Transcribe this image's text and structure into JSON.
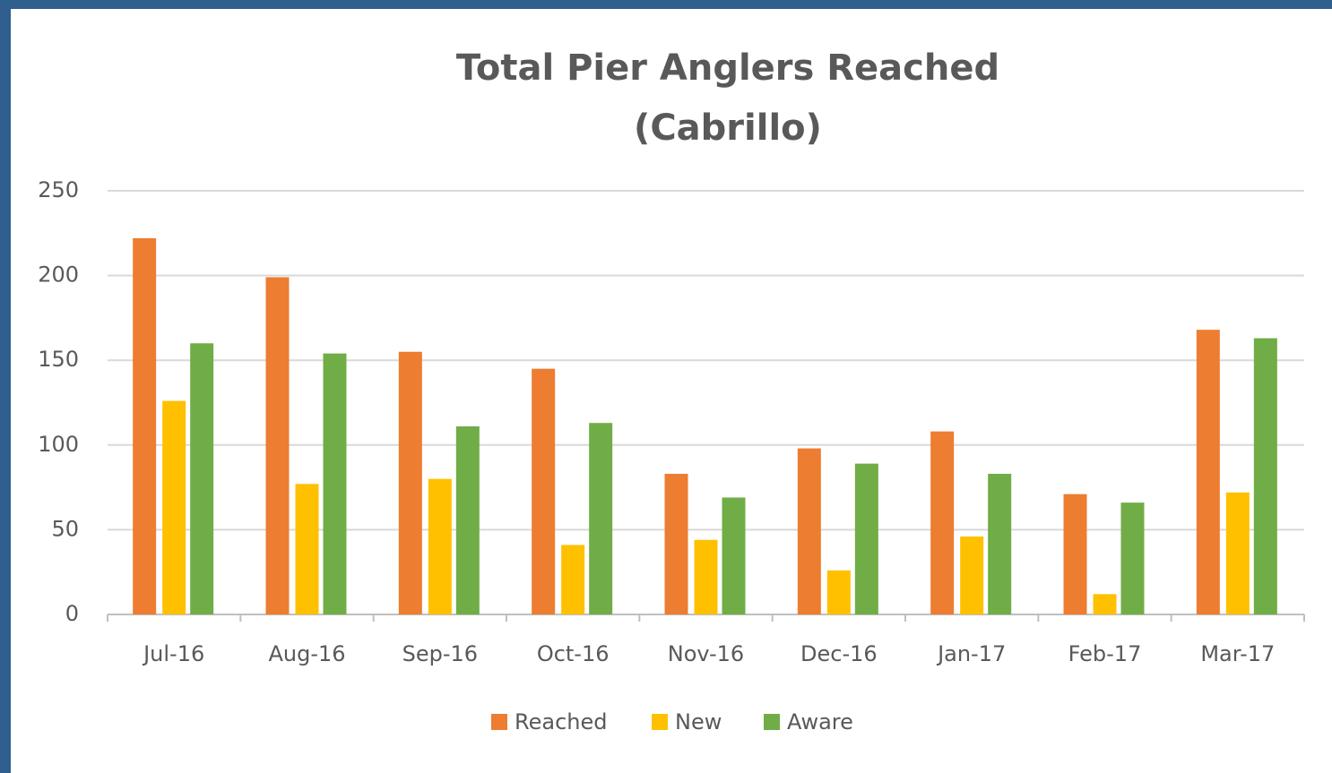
{
  "chart_data": {
    "type": "bar",
    "title": [
      "Total Pier Anglers Reached",
      "(Cabrillo)"
    ],
    "categories": [
      "Jul-16",
      "Aug-16",
      "Sep-16",
      "Oct-16",
      "Nov-16",
      "Dec-16",
      "Jan-17",
      "Feb-17",
      "Mar-17"
    ],
    "series": [
      {
        "name": "Reached",
        "color": "#ed7d31",
        "values": [
          222,
          199,
          155,
          145,
          83,
          98,
          108,
          71,
          168
        ]
      },
      {
        "name": "New",
        "color": "#ffc000",
        "values": [
          126,
          77,
          80,
          41,
          44,
          26,
          46,
          12,
          72
        ]
      },
      {
        "name": "Aware",
        "color": "#70ad47",
        "values": [
          160,
          154,
          111,
          113,
          69,
          89,
          83,
          66,
          163
        ]
      }
    ],
    "ylim": [
      0,
      250
    ],
    "yticks": [
      0,
      50,
      100,
      150,
      200,
      250
    ],
    "grid": true,
    "legend": "bottom"
  }
}
